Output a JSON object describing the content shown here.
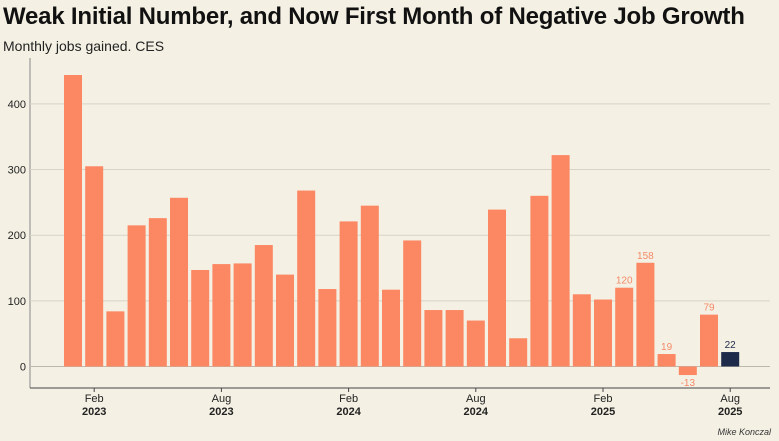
{
  "title": "Weak Initial Number, and Now First Month of Negative Job Growth",
  "subtitle": "Monthly jobs gained. CES",
  "footer": "Mike Konczal",
  "colors": {
    "bar": "#fc8763",
    "highlight": "#1d2a4a",
    "label": "#f58a68",
    "grid": "#d7d3c6",
    "background": "#f4f1e4"
  },
  "chart_data": {
    "type": "bar",
    "title": "Weak Initial Number, and Now First Month of Negative Job Growth",
    "subtitle": "Monthly jobs gained. CES",
    "xlabel": "",
    "ylabel": "",
    "ylim": [
      -40,
      460
    ],
    "yticks": [
      0,
      100,
      200,
      300,
      400
    ],
    "grid": true,
    "categories": [
      "Jan 2023",
      "Feb 2023",
      "Mar 2023",
      "Apr 2023",
      "May 2023",
      "Jun 2023",
      "Jul 2023",
      "Aug 2023",
      "Sep 2023",
      "Oct 2023",
      "Nov 2023",
      "Dec 2023",
      "Jan 2024",
      "Feb 2024",
      "Mar 2024",
      "Apr 2024",
      "May 2024",
      "Jun 2024",
      "Jul 2024",
      "Aug 2024",
      "Sep 2024",
      "Oct 2024",
      "Nov 2024",
      "Dec 2024",
      "Jan 2025",
      "Feb 2025",
      "Mar 2025",
      "Apr 2025",
      "May 2025",
      "Jun 2025",
      "Jul 2025",
      "Aug 2025"
    ],
    "values": [
      444,
      305,
      84,
      215,
      226,
      257,
      147,
      156,
      157,
      185,
      140,
      268,
      118,
      221,
      245,
      117,
      192,
      86,
      86,
      70,
      239,
      43,
      260,
      322,
      110,
      102,
      120,
      158,
      19,
      -13,
      79,
      22
    ],
    "highlight_index": 31,
    "labeled_points": [
      {
        "index": 26,
        "label": "120"
      },
      {
        "index": 27,
        "label": "158"
      },
      {
        "index": 28,
        "label": "19"
      },
      {
        "index": 29,
        "label": "-13"
      },
      {
        "index": 30,
        "label": "79"
      },
      {
        "index": 31,
        "label": "22"
      }
    ],
    "x_tick_labels": [
      {
        "index": 1,
        "month": "Feb",
        "year": "2023"
      },
      {
        "index": 7,
        "month": "Aug",
        "year": "2023"
      },
      {
        "index": 13,
        "month": "Feb",
        "year": "2024"
      },
      {
        "index": 19,
        "month": "Aug",
        "year": "2024"
      },
      {
        "index": 25,
        "month": "Feb",
        "year": "2025"
      },
      {
        "index": 31,
        "month": "Aug",
        "year": "2025"
      }
    ]
  }
}
